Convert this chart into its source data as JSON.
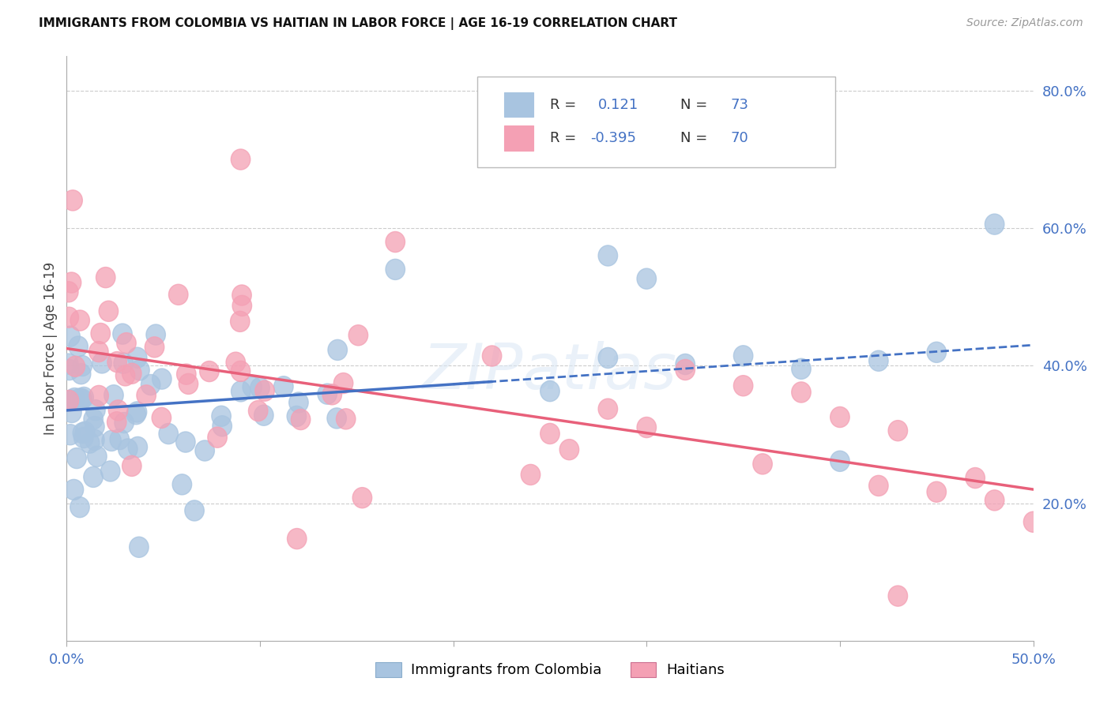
{
  "title": "IMMIGRANTS FROM COLOMBIA VS HAITIAN IN LABOR FORCE | AGE 16-19 CORRELATION CHART",
  "source": "Source: ZipAtlas.com",
  "ylabel_label": "In Labor Force | Age 16-19",
  "xlim": [
    0.0,
    0.5
  ],
  "ylim": [
    0.0,
    0.85
  ],
  "ytick_labels_right": [
    "20.0%",
    "40.0%",
    "60.0%",
    "80.0%"
  ],
  "ytick_vals_right": [
    0.2,
    0.4,
    0.6,
    0.8
  ],
  "colombia_color": "#a8c4e0",
  "haiti_color": "#f4a0b4",
  "colombia_line_color": "#4472c4",
  "haiti_line_color": "#e8607a",
  "R_colombia": 0.121,
  "N_colombia": 73,
  "R_haiti": -0.395,
  "N_haiti": 70,
  "watermark": "ZIPatlas",
  "background_color": "#ffffff",
  "grid_color": "#cccccc",
  "colombia_intercept": 0.325,
  "colombia_slope": 0.2,
  "haiti_intercept": 0.42,
  "haiti_slope": -0.42
}
